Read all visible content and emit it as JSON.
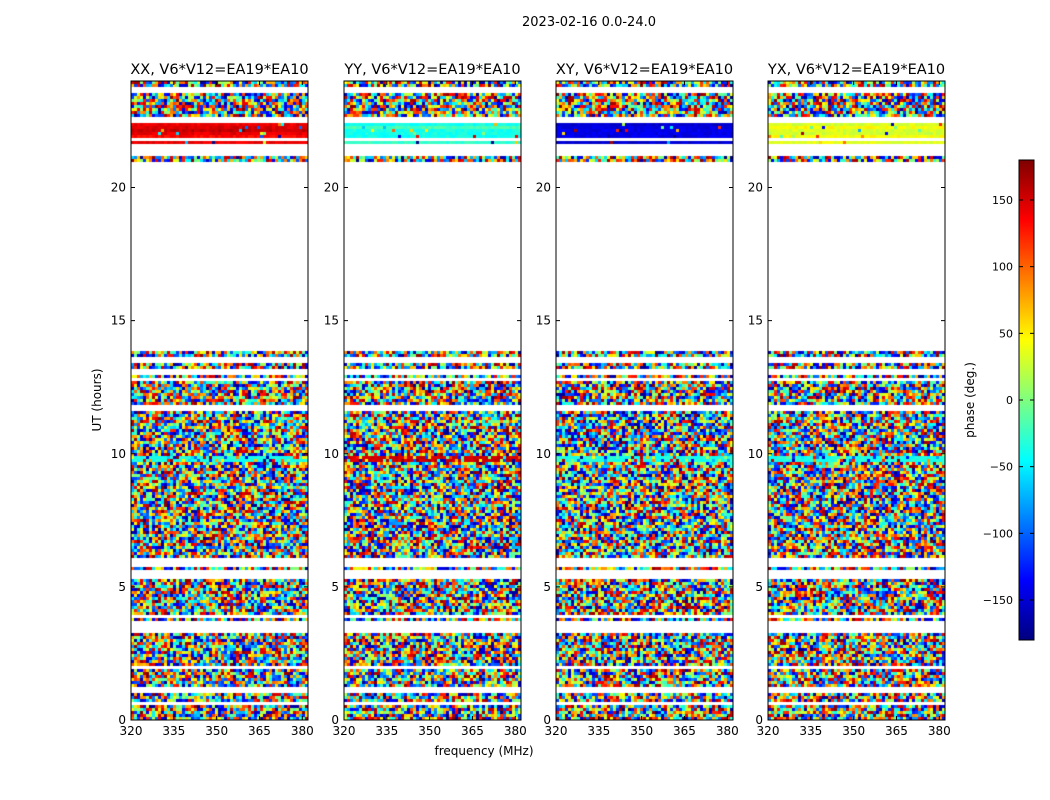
{
  "figure": {
    "suptitle": "2023-02-16 0.0-24.0",
    "xlabel": "frequency (MHz)",
    "ylabel": "UT (hours)"
  },
  "chart_data": {
    "type": "heatmap",
    "x_range": [
      320,
      382
    ],
    "y_range": [
      0,
      24
    ],
    "x_ticks": [
      320,
      335,
      350,
      365,
      380
    ],
    "y_ticks": [
      0,
      5,
      10,
      15,
      20
    ],
    "no_data_rows": [
      [
        13.95,
        21.0
      ],
      [
        22.55,
        22.75
      ],
      [
        21.25,
        21.65
      ],
      [
        3.35,
        3.65
      ],
      [
        1.05,
        1.25
      ]
    ],
    "panels": [
      {
        "title": "XX, V6*V12=EA19*EA10",
        "pol": "XX"
      },
      {
        "title": "YY, V6*V12=EA19*EA10",
        "pol": "YY"
      },
      {
        "title": "XY, V6*V12=EA19*EA10",
        "pol": "XY"
      },
      {
        "title": "YX, V6*V12=EA19*EA10",
        "pol": "YX"
      }
    ],
    "colorbar": {
      "label": "phase (deg.)",
      "range": [
        -180,
        180
      ],
      "ticks": [
        -150,
        -100,
        -50,
        0,
        50,
        100,
        150
      ],
      "tick_labels": [
        "−150",
        "−100",
        "−50",
        "0",
        "50",
        "100",
        "150"
      ],
      "colormap": "jet"
    }
  }
}
